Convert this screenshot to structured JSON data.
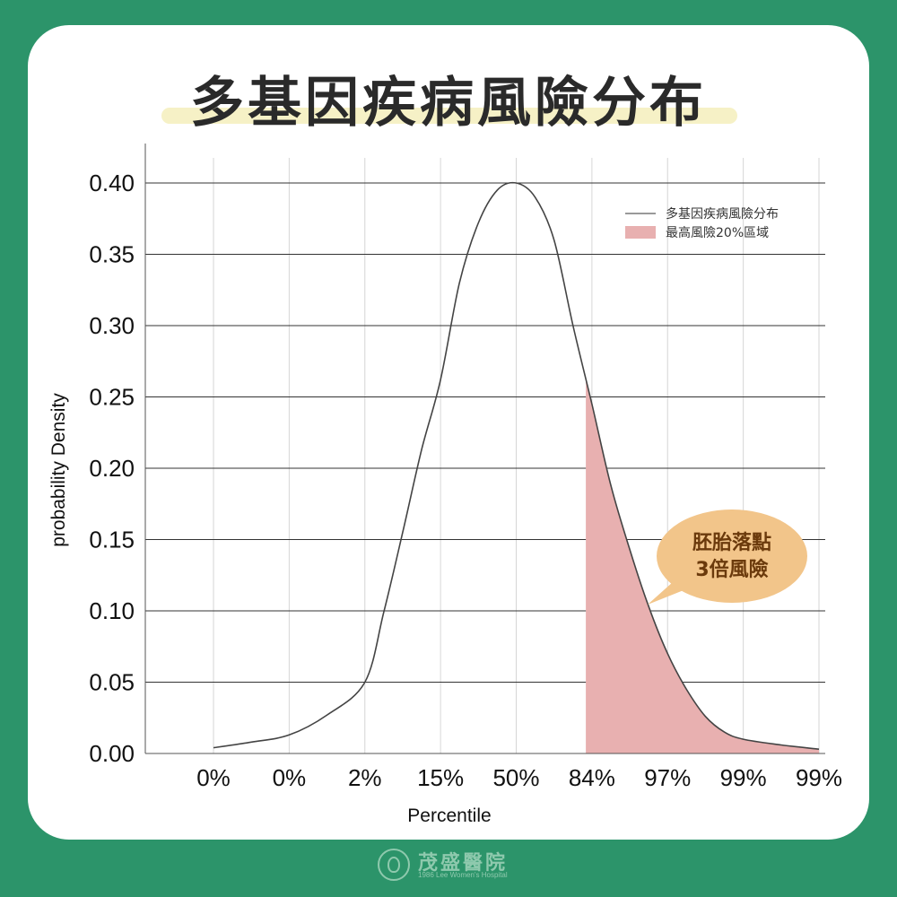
{
  "title": "多基因疾病風險分布",
  "chart_data": {
    "type": "area",
    "title": "多基因疾病風險分布",
    "xlabel": "Percentile",
    "ylabel": "probability Density",
    "ylim": [
      0,
      0.4
    ],
    "yticks": [
      "0.00",
      "0.05",
      "0.10",
      "0.15",
      "0.20",
      "0.25",
      "0.30",
      "0.35",
      "0.40"
    ],
    "xticks": [
      "0%",
      "0%",
      "2%",
      "15%",
      "50%",
      "84%",
      "97%",
      "99%",
      "99%"
    ],
    "grid": true,
    "legend_position": "top-right",
    "series": [
      {
        "name": "多基因疾病風險分布",
        "type": "line",
        "color": "#444444",
        "x": [
          -4.0,
          -3.5,
          -3.0,
          -2.5,
          -2.0,
          -1.75,
          -1.5,
          -1.25,
          -1.0,
          -0.75,
          -0.5,
          -0.25,
          0.0,
          0.25,
          0.5,
          0.75,
          1.0,
          1.25,
          1.5,
          1.75,
          2.0,
          2.25,
          2.5,
          2.75,
          3.0,
          3.5,
          4.0
        ],
        "y": [
          0.004,
          0.008,
          0.013,
          0.027,
          0.05,
          0.099,
          0.155,
          0.213,
          0.262,
          0.33,
          0.372,
          0.395,
          0.4,
          0.39,
          0.36,
          0.3,
          0.245,
          0.188,
          0.143,
          0.103,
          0.07,
          0.045,
          0.026,
          0.015,
          0.01,
          0.006,
          0.003
        ]
      },
      {
        "name": "最高風險20%區域",
        "type": "area",
        "color": "#e8b0b0",
        "x_from": 0.92,
        "x_to": 4.0
      }
    ],
    "annotation": {
      "lines": [
        "胚胎落點",
        "3倍風險"
      ],
      "color": "#f2c58a"
    }
  },
  "footer": {
    "logo_cn": "茂盛醫院",
    "logo_en": "1986 Lee Women's Hospital"
  }
}
